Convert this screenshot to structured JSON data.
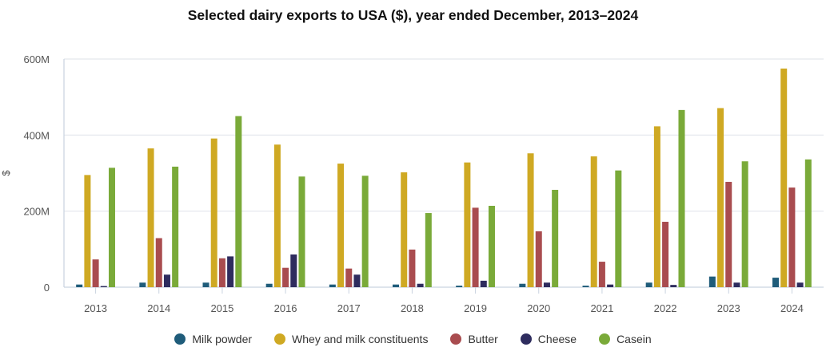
{
  "chart_data": {
    "type": "bar",
    "title": "Selected dairy exports to USA ($), year ended December, 2013–2024",
    "xlabel": "",
    "ylabel": "$",
    "ylim": [
      0,
      600
    ],
    "yunit": "M",
    "yticks": [
      0,
      200,
      400,
      600
    ],
    "ytick_labels": [
      "0",
      "200M",
      "400M",
      "600M"
    ],
    "grid": true,
    "legend_position": "bottom",
    "categories": [
      "2013",
      "2014",
      "2015",
      "2016",
      "2017",
      "2018",
      "2019",
      "2020",
      "2021",
      "2022",
      "2023",
      "2024"
    ],
    "series": [
      {
        "name": "Milk powder",
        "color": "#1f5c7a",
        "values": [
          7,
          12,
          12,
          9,
          7,
          7,
          4,
          9,
          4,
          12,
          28,
          25
        ]
      },
      {
        "name": "Whey and milk constituents",
        "color": "#cfa923",
        "values": [
          295,
          365,
          391,
          375,
          325,
          302,
          328,
          352,
          344,
          423,
          471,
          575
        ]
      },
      {
        "name": "Butter",
        "color": "#a94c4f",
        "values": [
          73,
          129,
          76,
          51,
          49,
          99,
          209,
          147,
          67,
          172,
          277,
          262
        ]
      },
      {
        "name": "Cheese",
        "color": "#2e2c5e",
        "values": [
          3,
          33,
          81,
          86,
          33,
          9,
          17,
          12,
          7,
          6,
          12,
          12
        ]
      },
      {
        "name": "Casein",
        "color": "#7aaa39",
        "values": [
          314,
          317,
          450,
          291,
          293,
          195,
          214,
          256,
          307,
          466,
          331,
          336
        ]
      }
    ]
  }
}
